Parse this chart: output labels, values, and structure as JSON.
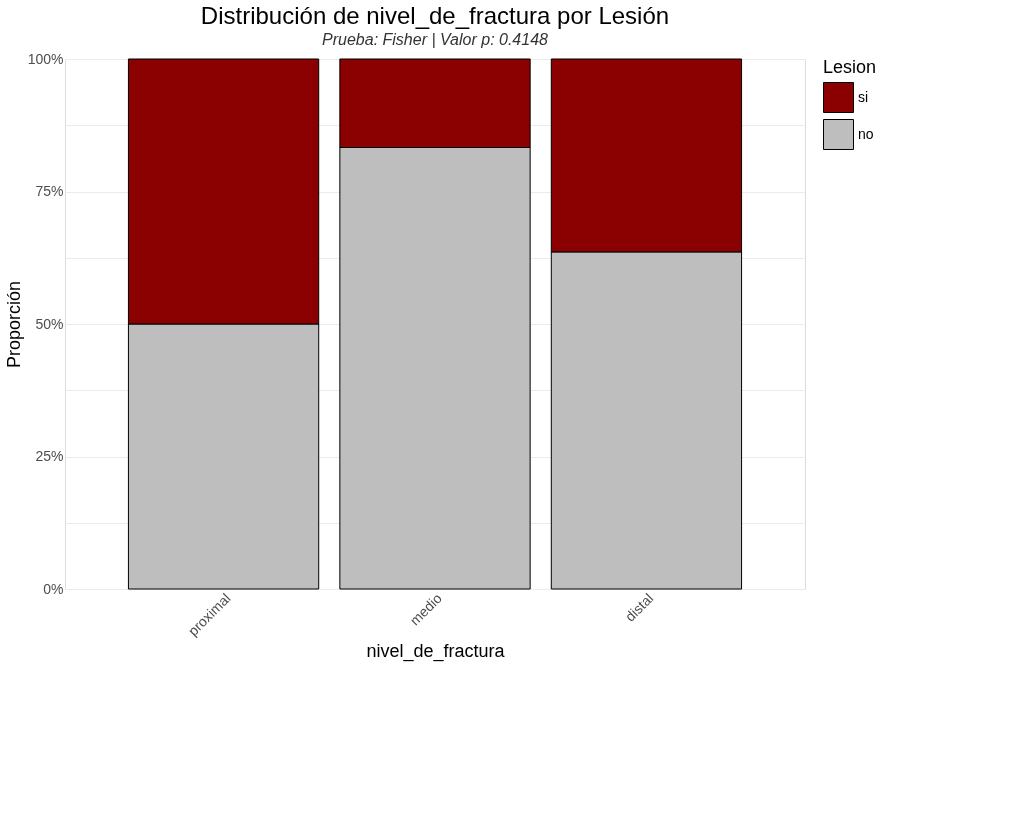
{
  "chart_data": {
    "type": "bar",
    "title": "Distribución de nivel_de_fractura por Lesión",
    "subtitle": "Prueba: Fisher | Valor p: 0.4148",
    "xlabel": "nivel_de_fractura",
    "ylabel": "Proporción",
    "legend_title": "Lesion",
    "categories": [
      "proximal",
      "medio",
      "distal"
    ],
    "stacked": true,
    "series": [
      {
        "name": "no",
        "color": "#bebebe",
        "values": [
          50,
          83.3,
          63.6
        ]
      },
      {
        "name": "si",
        "color": "#8b0000",
        "values": [
          50,
          16.7,
          36.4
        ]
      }
    ],
    "ylim": [
      0,
      100
    ],
    "yticks": [
      {
        "value": 0,
        "label": "0%"
      },
      {
        "value": 12.5,
        "label": null
      },
      {
        "value": 25,
        "label": "25%"
      },
      {
        "value": 37.5,
        "label": null
      },
      {
        "value": 50,
        "label": "50%"
      },
      {
        "value": 62.5,
        "label": null
      },
      {
        "value": 75,
        "label": "75%"
      },
      {
        "value": 87.5,
        "label": null
      },
      {
        "value": 100,
        "label": "100%"
      }
    ],
    "grid": true,
    "legend": "right"
  }
}
